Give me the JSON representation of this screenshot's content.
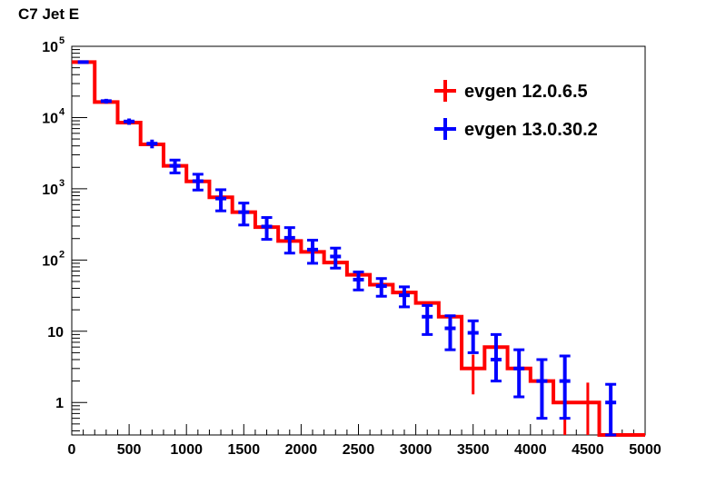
{
  "chart_data": {
    "type": "histogram",
    "title": "C7 Jet E",
    "xlabel": "",
    "ylabel": "",
    "xlim": [
      0,
      5000
    ],
    "ylim": [
      0.35,
      100000
    ],
    "yscale": "log",
    "grid": false,
    "legend_position": "top-right",
    "x_ticks": [
      0,
      500,
      1000,
      1500,
      2000,
      2500,
      3000,
      3500,
      4000,
      4500,
      5000
    ],
    "x_tick_labels": [
      "0",
      "500",
      "1000",
      "1500",
      "2000",
      "2500",
      "3000",
      "3500",
      "4000",
      "4500",
      "5000"
    ],
    "y_ticks": [
      {
        "value": 1,
        "base": "1",
        "exp": ""
      },
      {
        "value": 10,
        "base": "10",
        "exp": ""
      },
      {
        "value": 100,
        "base": "10",
        "exp": "2"
      },
      {
        "value": 1000,
        "base": "10",
        "exp": "3"
      },
      {
        "value": 10000,
        "base": "10",
        "exp": "4"
      },
      {
        "value": 100000,
        "base": "10",
        "exp": "5"
      }
    ],
    "bin_edges": [
      0,
      200,
      400,
      600,
      800,
      1000,
      1200,
      1400,
      1600,
      1800,
      2000,
      2200,
      2400,
      2600,
      2800,
      3000,
      3200,
      3400,
      3600,
      3800,
      4000,
      4200,
      4400,
      4600,
      4800,
      5000
    ],
    "series": [
      {
        "name": "evgen 12.0.6.5",
        "color": "#ff0000",
        "style": "histogram-step",
        "values": [
          60000,
          16500,
          8500,
          4200,
          2100,
          1270,
          760,
          470,
          290,
          185,
          130,
          92,
          62,
          45,
          35,
          25,
          16,
          3,
          6,
          3,
          2,
          1,
          1,
          0,
          0
        ],
        "err_low": [
          0,
          0,
          0,
          0,
          0,
          0,
          0,
          0,
          0,
          0,
          0,
          0,
          0,
          0,
          0,
          0,
          0,
          1.7,
          4,
          1.7,
          1.4,
          0.7,
          0.7,
          0,
          0
        ],
        "err_high": [
          0,
          0,
          0,
          0,
          0,
          0,
          0,
          0,
          0,
          0,
          0,
          0,
          0,
          0,
          0,
          0,
          0,
          1.7,
          2.5,
          1.7,
          1.4,
          0.9,
          0.9,
          0,
          0
        ]
      },
      {
        "name": "evgen 13.0.30.2",
        "color": "#0000ff",
        "style": "points-errorbars",
        "values": [
          60000,
          17000,
          8800,
          4300,
          2100,
          1280,
          730,
          470,
          295,
          205,
          140,
          112,
          53,
          43,
          32,
          16,
          11,
          9.5,
          4,
          3,
          2,
          2,
          0,
          1,
          0
        ],
        "err_low": [
          2500,
          1300,
          900,
          600,
          430,
          320,
          240,
          160,
          100,
          80,
          50,
          35,
          15,
          12,
          10,
          7,
          5.5,
          4.5,
          2,
          1.8,
          1.4,
          1.4,
          0,
          0.8,
          0
        ],
        "err_high": [
          2500,
          1300,
          900,
          600,
          430,
          320,
          240,
          160,
          100,
          80,
          50,
          35,
          15,
          12,
          10,
          7,
          5.5,
          4.5,
          5,
          2.5,
          2,
          2.5,
          0,
          0.8,
          0
        ]
      }
    ]
  }
}
